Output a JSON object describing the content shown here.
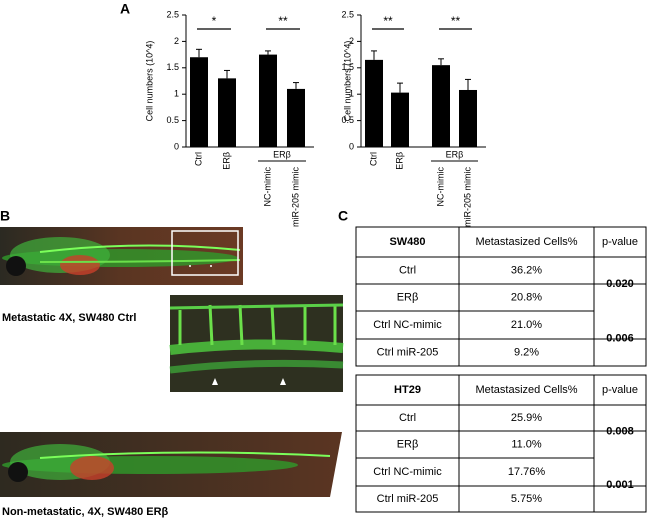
{
  "panel_labels": {
    "a": "A",
    "b": "B",
    "c": "C"
  },
  "chart_data": [
    {
      "type": "bar",
      "y_label": "Cell numbers (10^4)",
      "categories": [
        "Ctrl",
        "ERβ",
        "NC-mimic",
        "miR-205 mimic"
      ],
      "group_label": "ERβ",
      "values": [
        1.7,
        1.3,
        1.75,
        1.1
      ],
      "errors": [
        0.15,
        0.15,
        0.07,
        0.12
      ],
      "color": "#000000",
      "significance": [
        "*",
        "**"
      ],
      "ylim": [
        0,
        2.5
      ],
      "yticks": [
        0,
        0.5,
        1,
        1.5,
        2,
        2.5
      ]
    },
    {
      "type": "bar",
      "y_label": "Cell numbers (10^4)",
      "categories": [
        "Ctrl",
        "ERβ",
        "NC-mimic",
        "miR-205 mimic"
      ],
      "group_label": "ERβ",
      "values": [
        1.65,
        1.03,
        1.55,
        1.08
      ],
      "errors": [
        0.17,
        0.18,
        0.12,
        0.2
      ],
      "color": "#000000",
      "significance": [
        "**",
        "**"
      ],
      "ylim": [
        0,
        2.5
      ],
      "yticks": [
        0,
        0.5,
        1,
        1.5,
        2,
        2.5
      ]
    }
  ],
  "captions": {
    "metastatic": "Metastatic 4X, SW480 Ctrl",
    "non_metastatic": "Non-metastatic, 4X, SW480 ERβ"
  },
  "tables": [
    {
      "header": [
        "SW480",
        "Metastasized Cells%",
        "p-value"
      ],
      "rows": [
        [
          "Ctrl",
          "36.2%"
        ],
        [
          "ERβ",
          "20.8%"
        ],
        [
          "Ctrl NC-mimic",
          "21.0%"
        ],
        [
          "Ctrl miR-205",
          "9.2%"
        ]
      ],
      "p_values": [
        "0.020",
        "0.006"
      ]
    },
    {
      "header": [
        "HT29",
        "Metastasized Cells%",
        "p-value"
      ],
      "rows": [
        [
          "Ctrl",
          "25.9%"
        ],
        [
          "ERβ",
          "11.0%"
        ],
        [
          "Ctrl NC-mimic",
          "17.76%"
        ],
        [
          "Ctrl miR-205",
          "5.75%"
        ]
      ],
      "p_values": [
        "0.008",
        "0.001"
      ]
    }
  ]
}
